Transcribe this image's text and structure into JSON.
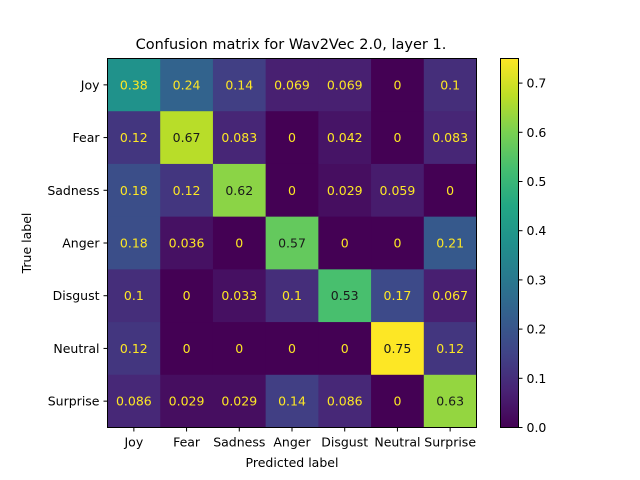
{
  "chart_data": {
    "type": "heatmap",
    "title": "Confusion matrix for Wav2Vec 2.0, layer 1.",
    "xlabel": "Predicted label",
    "ylabel": "True label",
    "x_categories": [
      "Joy",
      "Fear",
      "Sadness",
      "Anger",
      "Disgust",
      "Neutral",
      "Surprise"
    ],
    "y_categories": [
      "Joy",
      "Fear",
      "Sadness",
      "Anger",
      "Disgust",
      "Neutral",
      "Surprise"
    ],
    "values": [
      [
        0.38,
        0.24,
        0.14,
        0.069,
        0.069,
        0,
        0.1
      ],
      [
        0.12,
        0.67,
        0.083,
        0,
        0.042,
        0,
        0.083
      ],
      [
        0.18,
        0.12,
        0.62,
        0,
        0.029,
        0.059,
        0
      ],
      [
        0.18,
        0.036,
        0,
        0.57,
        0,
        0,
        0.21
      ],
      [
        0.1,
        0,
        0.033,
        0.1,
        0.53,
        0.17,
        0.067
      ],
      [
        0.12,
        0,
        0,
        0,
        0,
        0.75,
        0.12
      ],
      [
        0.086,
        0.029,
        0.029,
        0.14,
        0.086,
        0,
        0.63
      ]
    ],
    "value_labels": [
      [
        "0.38",
        "0.24",
        "0.14",
        "0.069",
        "0.069",
        "0",
        "0.1"
      ],
      [
        "0.12",
        "0.67",
        "0.083",
        "0",
        "0.042",
        "0",
        "0.083"
      ],
      [
        "0.18",
        "0.12",
        "0.62",
        "0",
        "0.029",
        "0.059",
        "0"
      ],
      [
        "0.18",
        "0.036",
        "0",
        "0.57",
        "0",
        "0",
        "0.21"
      ],
      [
        "0.1",
        "0",
        "0.033",
        "0.1",
        "0.53",
        "0.17",
        "0.067"
      ],
      [
        "0.12",
        "0",
        "0",
        "0",
        "0",
        "0.75",
        "0.12"
      ],
      [
        "0.086",
        "0.029",
        "0.029",
        "0.14",
        "0.086",
        "0",
        "0.63"
      ]
    ],
    "colormap": "viridis",
    "colorbar": {
      "range": [
        0,
        0.75
      ],
      "ticks": [
        0.0,
        0.1,
        0.2,
        0.3,
        0.4,
        0.5,
        0.6,
        0.7
      ],
      "tick_labels": [
        "0.0",
        "0.1",
        "0.2",
        "0.3",
        "0.4",
        "0.5",
        "0.6",
        "0.7"
      ]
    },
    "grid": false
  }
}
